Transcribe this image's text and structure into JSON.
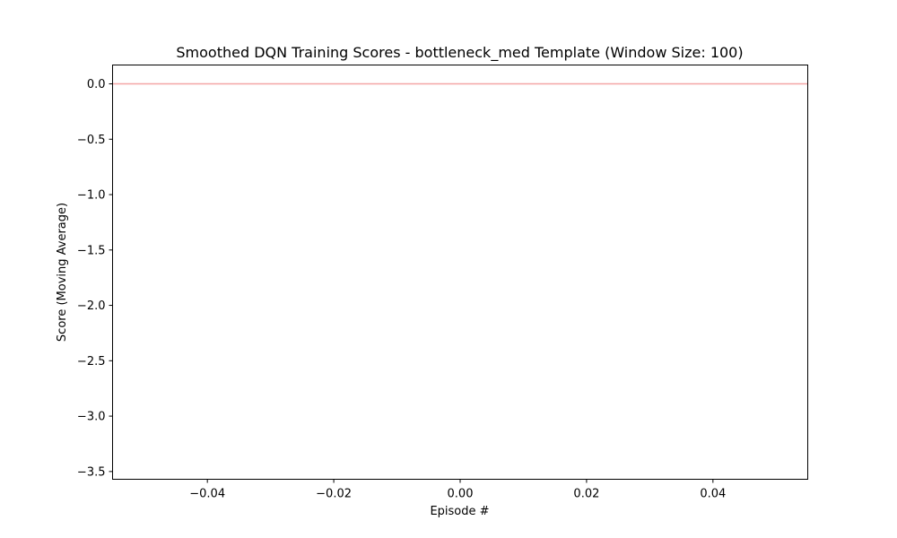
{
  "chart_data": {
    "type": "line",
    "title": "Smoothed DQN Training Scores - bottleneck_med Template (Window Size: 100)",
    "xlabel": "Episode #",
    "ylabel": "Score (Moving Average)",
    "xlim": [
      -0.055,
      0.055
    ],
    "ylim": [
      -3.57,
      0.17
    ],
    "x_ticks": [
      -0.04,
      -0.02,
      0.0,
      0.02,
      0.04
    ],
    "x_tick_labels": [
      "−0.04",
      "−0.02",
      "0.00",
      "0.02",
      "0.04"
    ],
    "y_ticks": [
      0.0,
      -0.5,
      -1.0,
      -1.5,
      -2.0,
      -2.5,
      -3.0,
      -3.5
    ],
    "y_tick_labels": [
      "0.0",
      "−0.5",
      "−1.0",
      "−1.5",
      "−2.0",
      "−2.5",
      "−3.0",
      "−3.5"
    ],
    "grid": false,
    "series": [
      {
        "x": [],
        "values": [],
        "color": "#1f77b4"
      }
    ],
    "reference_lines": [
      {
        "orientation": "horizontal",
        "y": 0.0,
        "color": "#f4a6a6"
      }
    ]
  }
}
